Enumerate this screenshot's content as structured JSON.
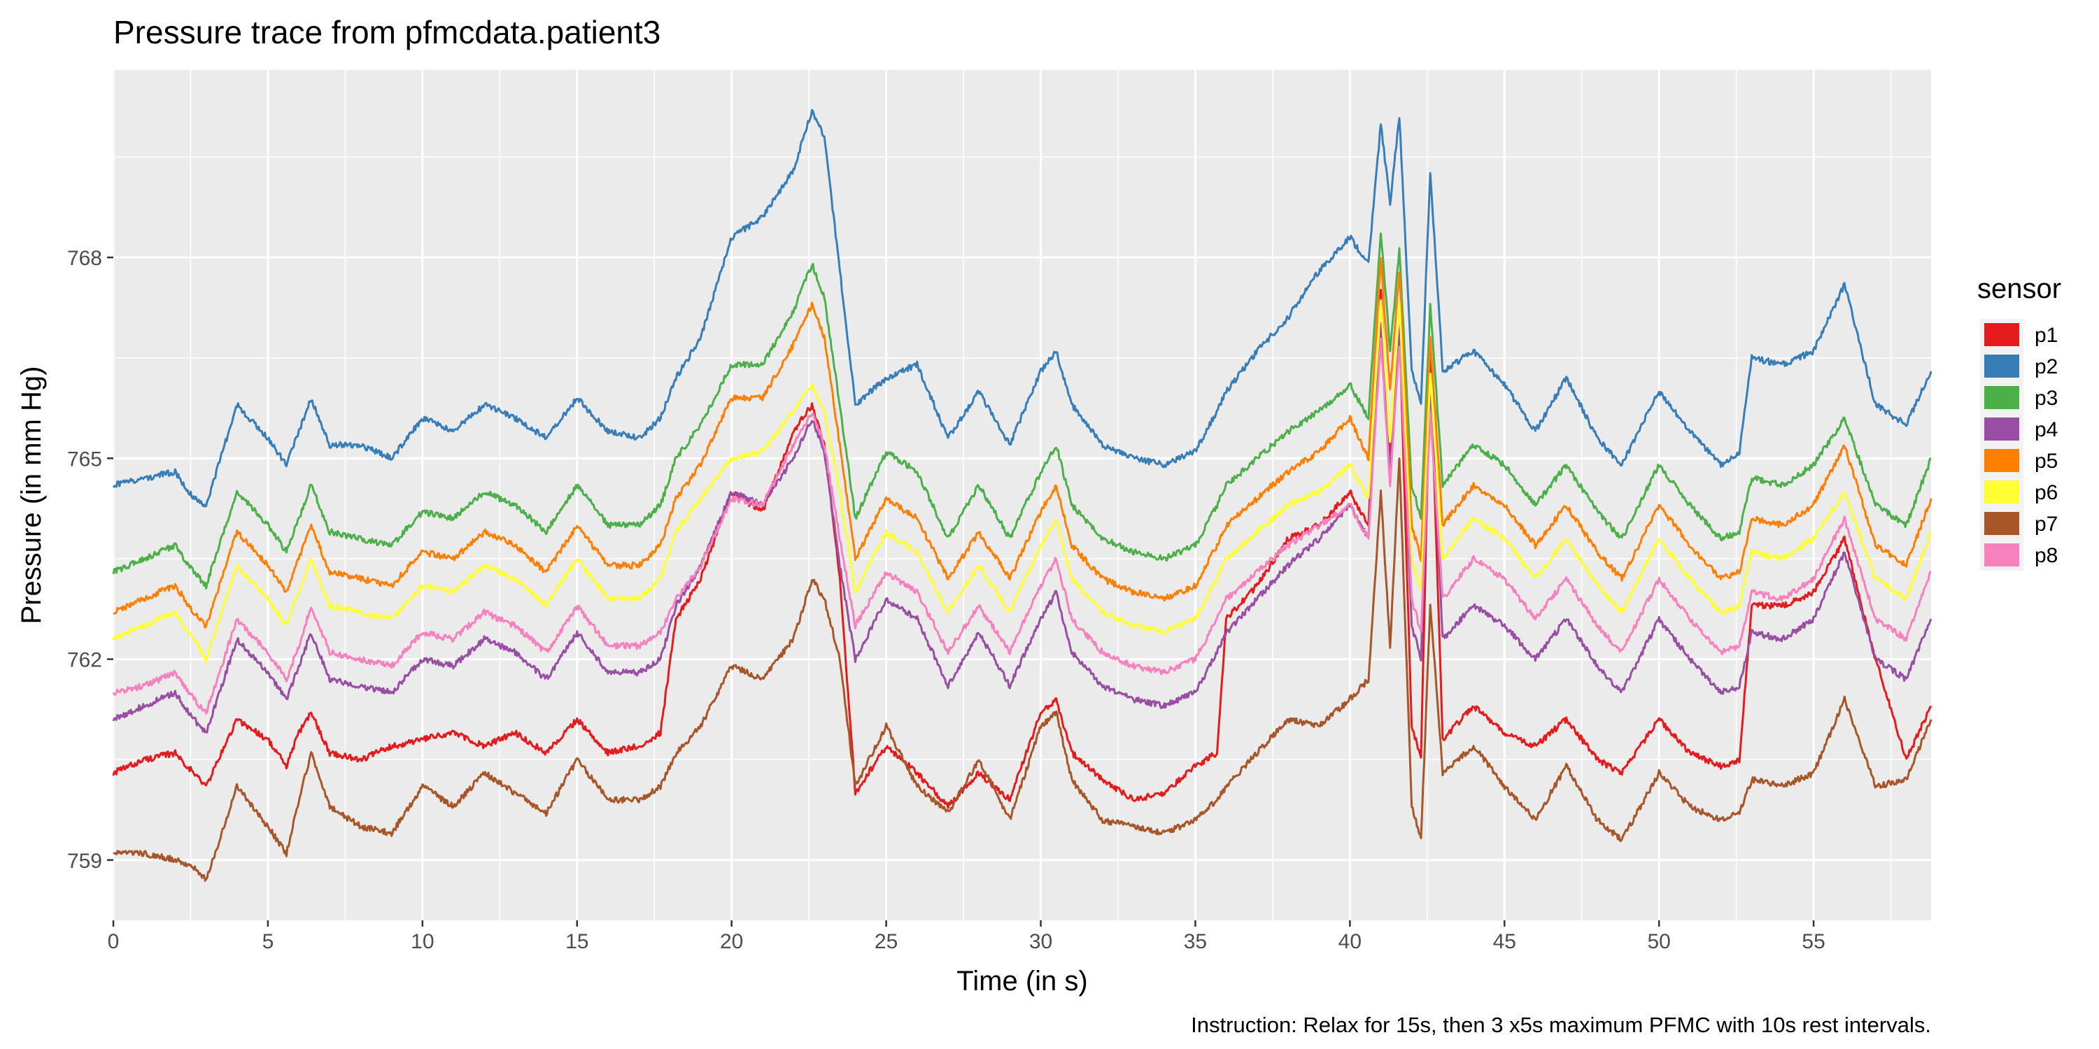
{
  "chart_data": {
    "type": "line",
    "title": "Pressure trace from pfmcdata.patient3",
    "xlabel": "Time (in s)",
    "ylabel": "Pressure (in mm Hg)",
    "caption": "Instruction: Relax for 15s, then 3 x5s maximum PFMC with 10s rest intervals.",
    "xlim": [
      0,
      58.8
    ],
    "ylim": [
      758.1,
      770.8
    ],
    "x_ticks": [
      0,
      5,
      10,
      15,
      20,
      25,
      30,
      35,
      40,
      45,
      50,
      55
    ],
    "y_ticks": [
      759,
      762,
      765,
      768
    ],
    "grid": true,
    "legend": {
      "title": "sensor",
      "position": "right"
    },
    "x": [
      0,
      1,
      2,
      2.6,
      3,
      4,
      5,
      5.6,
      6,
      6.4,
      7,
      8,
      9,
      10,
      11,
      12,
      13,
      14,
      15,
      16,
      17,
      17.7,
      18.2,
      19,
      20,
      21,
      22,
      22.6,
      23,
      23.5,
      24,
      25,
      26,
      27,
      28,
      29,
      30,
      30.5,
      31,
      32,
      33,
      34,
      35,
      35.7,
      36,
      37,
      38,
      39,
      40,
      40.6,
      41,
      41.3,
      41.6,
      42,
      42.3,
      42.6,
      43,
      44,
      45,
      46,
      47,
      48,
      48.8,
      50,
      51,
      52,
      52.6,
      53,
      54,
      55,
      56,
      57,
      58,
      58.8
    ],
    "series": [
      {
        "name": "p1",
        "color": "#E41A1C",
        "values": [
          760.3,
          760.5,
          760.6,
          760.3,
          760.1,
          761.1,
          760.8,
          760.4,
          760.9,
          761.2,
          760.6,
          760.5,
          760.7,
          760.8,
          760.9,
          760.7,
          760.9,
          760.6,
          761.1,
          760.6,
          760.7,
          760.9,
          762.6,
          763.2,
          764.5,
          764.2,
          765.4,
          765.8,
          765.2,
          763.2,
          760.0,
          760.7,
          760.3,
          759.8,
          760.3,
          759.9,
          761.2,
          761.4,
          760.6,
          760.2,
          759.9,
          760.0,
          760.4,
          760.6,
          762.6,
          763.1,
          763.8,
          764.0,
          764.5,
          764.0,
          767.5,
          765.0,
          767.0,
          761.0,
          760.5,
          766.5,
          760.8,
          761.3,
          760.9,
          760.7,
          761.1,
          760.5,
          760.3,
          761.1,
          760.6,
          760.4,
          760.5,
          762.8,
          762.8,
          763.0,
          763.8,
          762.0,
          760.5,
          761.3
        ]
      },
      {
        "name": "p2",
        "color": "#377EB8",
        "values": [
          764.6,
          764.7,
          764.8,
          764.4,
          764.3,
          765.8,
          765.3,
          764.9,
          765.4,
          765.9,
          765.2,
          765.2,
          765.0,
          765.6,
          765.4,
          765.8,
          765.6,
          765.3,
          765.9,
          765.4,
          765.3,
          765.6,
          766.2,
          766.8,
          768.3,
          768.6,
          769.3,
          770.2,
          769.8,
          767.8,
          765.8,
          766.2,
          766.4,
          765.3,
          766.0,
          765.2,
          766.3,
          766.6,
          765.8,
          765.2,
          765.0,
          764.9,
          765.1,
          765.7,
          766.0,
          766.6,
          767.1,
          767.8,
          768.3,
          767.9,
          770.0,
          768.8,
          770.1,
          766.3,
          765.8,
          769.3,
          766.3,
          766.6,
          766.1,
          765.4,
          766.2,
          765.3,
          764.9,
          766.0,
          765.4,
          764.9,
          765.1,
          766.5,
          766.4,
          766.6,
          767.6,
          765.8,
          765.5,
          766.3
        ]
      },
      {
        "name": "p3",
        "color": "#4DAF4A",
        "values": [
          763.3,
          763.5,
          763.7,
          763.3,
          763.1,
          764.5,
          764.0,
          763.6,
          764.1,
          764.6,
          763.9,
          763.8,
          763.7,
          764.2,
          764.1,
          764.5,
          764.3,
          763.9,
          764.6,
          764.0,
          764.0,
          764.3,
          765.0,
          765.5,
          766.4,
          766.4,
          767.2,
          767.9,
          767.4,
          765.8,
          764.1,
          765.1,
          764.8,
          763.8,
          764.6,
          763.8,
          764.8,
          765.2,
          764.3,
          763.8,
          763.6,
          763.5,
          763.7,
          764.3,
          764.6,
          765.0,
          765.4,
          765.7,
          766.1,
          765.6,
          768.4,
          766.6,
          768.1,
          764.6,
          764.1,
          767.3,
          764.6,
          765.2,
          764.9,
          764.3,
          764.9,
          764.2,
          763.8,
          764.9,
          764.3,
          763.8,
          763.9,
          764.7,
          764.6,
          764.9,
          765.6,
          764.3,
          764.0,
          765.0
        ]
      },
      {
        "name": "p4",
        "color": "#984EA3",
        "values": [
          761.1,
          761.3,
          761.5,
          761.1,
          760.9,
          762.3,
          761.8,
          761.4,
          761.9,
          762.4,
          761.7,
          761.6,
          761.5,
          762.0,
          761.9,
          762.3,
          762.1,
          761.7,
          762.4,
          761.8,
          761.8,
          762.0,
          762.8,
          763.4,
          764.5,
          764.3,
          765.0,
          765.6,
          765.1,
          763.4,
          762.0,
          762.9,
          762.6,
          761.6,
          762.4,
          761.6,
          762.6,
          763.0,
          762.1,
          761.6,
          761.4,
          761.3,
          761.5,
          762.1,
          762.4,
          762.9,
          763.4,
          763.8,
          764.3,
          763.8,
          767.0,
          764.8,
          767.0,
          762.5,
          762.0,
          766.2,
          762.3,
          762.8,
          762.5,
          762.0,
          762.6,
          761.9,
          761.5,
          762.6,
          762.0,
          761.5,
          761.6,
          762.4,
          762.3,
          762.6,
          763.6,
          762.0,
          761.7,
          762.6
        ]
      },
      {
        "name": "p5",
        "color": "#FF7F00",
        "values": [
          762.7,
          762.9,
          763.1,
          762.7,
          762.5,
          763.9,
          763.4,
          763.0,
          763.5,
          764.0,
          763.3,
          763.2,
          763.1,
          763.6,
          763.5,
          763.9,
          763.7,
          763.3,
          764.0,
          763.4,
          763.4,
          763.7,
          764.4,
          764.9,
          765.9,
          765.9,
          766.7,
          767.3,
          766.8,
          765.2,
          763.5,
          764.4,
          764.1,
          763.2,
          763.9,
          763.2,
          764.2,
          764.6,
          763.7,
          763.2,
          763.0,
          762.9,
          763.1,
          763.7,
          764.0,
          764.4,
          764.8,
          765.1,
          765.6,
          765.0,
          768.0,
          766.0,
          767.8,
          764.0,
          763.5,
          766.8,
          764.0,
          764.6,
          764.3,
          763.7,
          764.3,
          763.6,
          763.2,
          764.3,
          763.7,
          763.2,
          763.3,
          764.1,
          764.0,
          764.3,
          765.2,
          763.7,
          763.4,
          764.4
        ]
      },
      {
        "name": "p6",
        "color": "#FFFF33",
        "values": [
          762.3,
          762.5,
          762.7,
          762.3,
          762.0,
          763.4,
          762.9,
          762.5,
          763.0,
          763.5,
          762.8,
          762.7,
          762.6,
          763.1,
          763.0,
          763.4,
          763.2,
          762.8,
          763.5,
          762.9,
          762.9,
          763.2,
          763.9,
          764.4,
          765.0,
          765.1,
          765.7,
          766.1,
          765.7,
          764.5,
          763.0,
          763.9,
          763.6,
          762.7,
          763.4,
          762.7,
          763.7,
          764.1,
          763.2,
          762.7,
          762.5,
          762.4,
          762.6,
          763.2,
          763.5,
          763.9,
          764.3,
          764.5,
          764.9,
          764.4,
          767.4,
          765.2,
          767.3,
          763.5,
          763.0,
          766.3,
          763.5,
          764.1,
          763.8,
          763.2,
          763.8,
          763.1,
          762.7,
          763.8,
          763.2,
          762.7,
          762.8,
          763.6,
          763.5,
          763.8,
          764.5,
          763.2,
          762.9,
          763.9
        ]
      },
      {
        "name": "p7",
        "color": "#A65628",
        "values": [
          759.1,
          759.1,
          759.0,
          758.9,
          758.7,
          760.1,
          759.5,
          759.1,
          759.9,
          760.6,
          759.8,
          759.5,
          759.4,
          760.1,
          759.8,
          760.3,
          760.0,
          759.7,
          760.5,
          759.9,
          759.9,
          760.1,
          760.6,
          761.0,
          761.9,
          761.7,
          762.3,
          763.2,
          762.9,
          762.0,
          760.1,
          761.0,
          760.1,
          759.7,
          760.5,
          759.6,
          761.0,
          761.2,
          760.2,
          759.6,
          759.5,
          759.4,
          759.6,
          759.9,
          760.1,
          760.6,
          761.1,
          761.0,
          761.4,
          761.7,
          764.5,
          762.2,
          765.0,
          759.8,
          759.3,
          762.8,
          760.3,
          760.7,
          760.1,
          759.6,
          760.4,
          759.6,
          759.3,
          760.3,
          759.8,
          759.6,
          759.7,
          760.2,
          760.1,
          760.3,
          761.4,
          760.1,
          760.2,
          761.1
        ]
      },
      {
        "name": "p8",
        "color": "#F781BF",
        "values": [
          761.5,
          761.6,
          761.8,
          761.4,
          761.2,
          762.6,
          762.1,
          761.7,
          762.2,
          762.8,
          762.1,
          762.0,
          761.9,
          762.4,
          762.3,
          762.7,
          762.5,
          762.1,
          762.8,
          762.2,
          762.2,
          762.4,
          762.9,
          763.4,
          764.4,
          764.3,
          765.2,
          765.7,
          765.2,
          763.8,
          762.5,
          763.3,
          763.0,
          762.1,
          762.8,
          762.1,
          763.1,
          763.5,
          762.6,
          762.1,
          761.9,
          761.8,
          762.0,
          762.6,
          762.9,
          763.3,
          763.7,
          764.0,
          764.3,
          763.8,
          766.8,
          764.6,
          766.7,
          762.9,
          762.4,
          765.7,
          762.9,
          763.5,
          763.2,
          762.6,
          763.2,
          762.5,
          762.1,
          763.2,
          762.6,
          762.1,
          762.2,
          763.0,
          762.9,
          763.2,
          764.1,
          762.6,
          762.3,
          763.3
        ]
      }
    ]
  }
}
